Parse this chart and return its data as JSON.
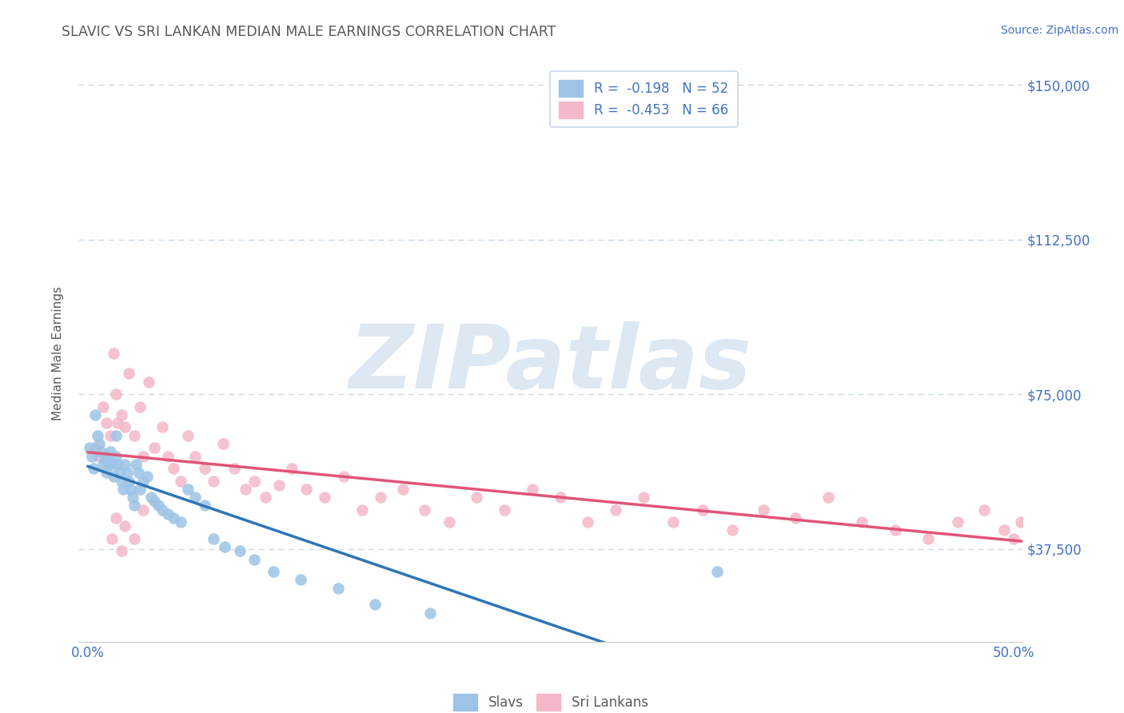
{
  "title": "SLAVIC VS SRI LANKAN MEDIAN MALE EARNINGS CORRELATION CHART",
  "source": "Source: ZipAtlas.com",
  "ylabel": "Median Male Earnings",
  "xlim": [
    -0.005,
    0.505
  ],
  "ylim": [
    15000,
    155000
  ],
  "yticks": [
    37500,
    75000,
    112500,
    150000
  ],
  "ytick_labels": [
    "$37,500",
    "$75,000",
    "$112,500",
    "$150,000"
  ],
  "xticks": [
    0.0,
    0.1,
    0.2,
    0.3,
    0.4,
    0.5
  ],
  "xtick_labels": [
    "0.0%",
    "",
    "",
    "",
    "",
    "50.0%"
  ],
  "legend_slavs": "R =  -0.198   N = 52",
  "legend_srilankans": "R =  -0.453   N = 66",
  "slavs_x": [
    0.001,
    0.002,
    0.003,
    0.004,
    0.005,
    0.006,
    0.007,
    0.008,
    0.009,
    0.01,
    0.01,
    0.011,
    0.012,
    0.013,
    0.014,
    0.015,
    0.015,
    0.016,
    0.017,
    0.018,
    0.019,
    0.02,
    0.021,
    0.022,
    0.023,
    0.024,
    0.025,
    0.026,
    0.027,
    0.028,
    0.03,
    0.032,
    0.034,
    0.036,
    0.038,
    0.04,
    0.043,
    0.046,
    0.05,
    0.054,
    0.058,
    0.063,
    0.068,
    0.074,
    0.082,
    0.09,
    0.1,
    0.115,
    0.135,
    0.155,
    0.185,
    0.34
  ],
  "slavs_y": [
    62000,
    60000,
    57000,
    70000,
    65000,
    63000,
    61000,
    58000,
    59000,
    56000,
    60000,
    58000,
    61000,
    58000,
    55000,
    65000,
    60000,
    58000,
    56000,
    54000,
    52000,
    58000,
    56000,
    54000,
    52000,
    50000,
    48000,
    58000,
    56000,
    52000,
    54000,
    55000,
    50000,
    49000,
    48000,
    47000,
    46000,
    45000,
    44000,
    52000,
    50000,
    48000,
    40000,
    38000,
    37000,
    35000,
    32000,
    30000,
    28000,
    24000,
    22000,
    32000
  ],
  "srilankans_x": [
    0.004,
    0.006,
    0.008,
    0.01,
    0.012,
    0.014,
    0.015,
    0.016,
    0.018,
    0.02,
    0.022,
    0.025,
    0.028,
    0.03,
    0.033,
    0.036,
    0.04,
    0.043,
    0.046,
    0.05,
    0.054,
    0.058,
    0.063,
    0.068,
    0.073,
    0.079,
    0.085,
    0.09,
    0.096,
    0.103,
    0.11,
    0.118,
    0.128,
    0.138,
    0.148,
    0.158,
    0.17,
    0.182,
    0.195,
    0.21,
    0.225,
    0.24,
    0.255,
    0.27,
    0.285,
    0.3,
    0.316,
    0.332,
    0.348,
    0.365,
    0.382,
    0.4,
    0.418,
    0.436,
    0.454,
    0.47,
    0.484,
    0.495,
    0.5,
    0.504,
    0.03,
    0.025,
    0.02,
    0.018,
    0.015,
    0.013
  ],
  "srilankans_y": [
    62000,
    60000,
    72000,
    68000,
    65000,
    85000,
    75000,
    68000,
    70000,
    67000,
    80000,
    65000,
    72000,
    60000,
    78000,
    62000,
    67000,
    60000,
    57000,
    54000,
    65000,
    60000,
    57000,
    54000,
    63000,
    57000,
    52000,
    54000,
    50000,
    53000,
    57000,
    52000,
    50000,
    55000,
    47000,
    50000,
    52000,
    47000,
    44000,
    50000,
    47000,
    52000,
    50000,
    44000,
    47000,
    50000,
    44000,
    47000,
    42000,
    47000,
    45000,
    50000,
    44000,
    42000,
    40000,
    44000,
    47000,
    42000,
    40000,
    44000,
    47000,
    40000,
    43000,
    37000,
    45000,
    40000
  ],
  "slavs_color": "#9dc3e6",
  "srilankans_color": "#f4b8c8",
  "slavs_line_color": "#2e75b6",
  "srilankans_line_color": "#e05578",
  "bg_color": "#ffffff",
  "grid_color": "#c8d8ea",
  "title_color": "#595959",
  "ylabel_color": "#595959",
  "tick_label_color": "#4472c4",
  "source_color": "#4472c4",
  "watermark_text": "ZIPatlas",
  "watermark_color": "#dde8f3",
  "slavs_line_x_solid_end": 0.355,
  "slavs_line_x_dashed_end": 0.505
}
